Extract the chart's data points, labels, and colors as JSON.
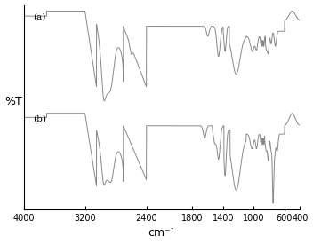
{
  "title": "",
  "xlabel": "cm⁻¹",
  "ylabel": "%T",
  "xlim": [
    4000,
    400
  ],
  "background_color": "#ffffff",
  "line_color": "#888888",
  "label_a": "(a)",
  "label_b": "(b)",
  "xticks": [
    4000,
    3200,
    2400,
    1800,
    1400,
    1000,
    600,
    400
  ],
  "xtick_labels": [
    "4000",
    "3200",
    "2400",
    "1800",
    "1400",
    "1000",
    "600",
    "400"
  ]
}
